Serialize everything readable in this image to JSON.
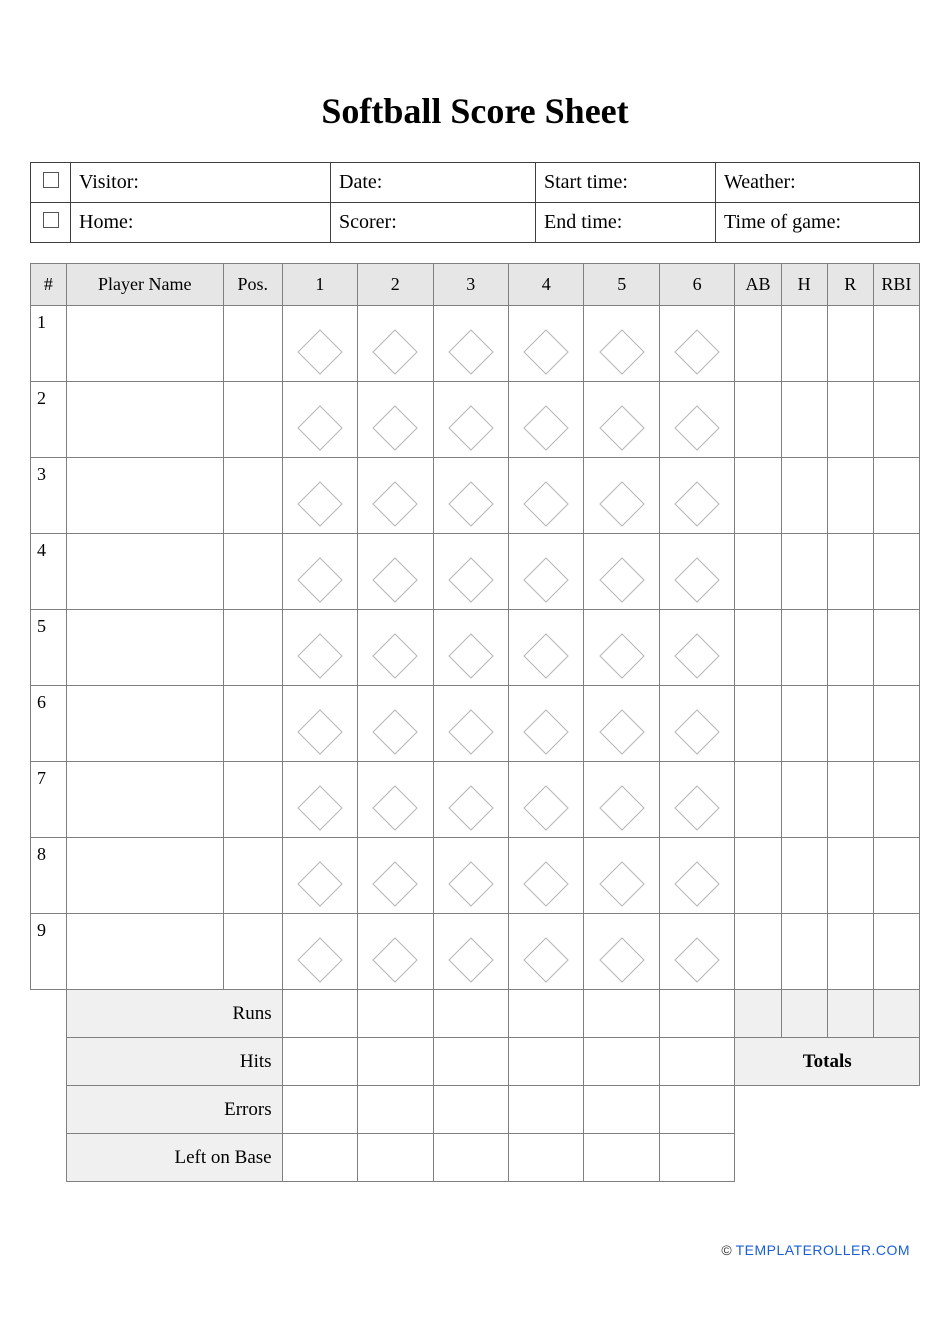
{
  "title": "Softball Score Sheet",
  "info": {
    "row1": {
      "visitor": "Visitor:",
      "date": "Date:",
      "start": "Start time:",
      "weather": "Weather:"
    },
    "row2": {
      "home": "Home:",
      "scorer": "Scorer:",
      "end": "End time:",
      "timeofgame": "Time of game:"
    }
  },
  "headers": {
    "num": "#",
    "name": "Player Name",
    "pos": "Pos.",
    "inn1": "1",
    "inn2": "2",
    "inn3": "3",
    "inn4": "4",
    "inn5": "5",
    "inn6": "6",
    "ab": "AB",
    "h": "H",
    "r": "R",
    "rbi": "RBI"
  },
  "player_numbers": [
    "1",
    "2",
    "3",
    "4",
    "5",
    "6",
    "7",
    "8",
    "9"
  ],
  "innings_count": 6,
  "stat_cols": 4,
  "summary": {
    "runs": "Runs",
    "hits": "Hits",
    "errors": "Errors",
    "lob": "Left on Base",
    "totals": "Totals"
  },
  "colors": {
    "border_dark": "#404040",
    "border_mid": "#808080",
    "header_bg": "#e6e6e6",
    "summary_bg": "#f0f0f0",
    "diamond_stroke": "#b5b5b5"
  },
  "diamond": {
    "size": 46,
    "stroke_width": 1
  },
  "footer": {
    "copyright": "© ",
    "link_text": "TEMPLATEROLLER.COM"
  }
}
